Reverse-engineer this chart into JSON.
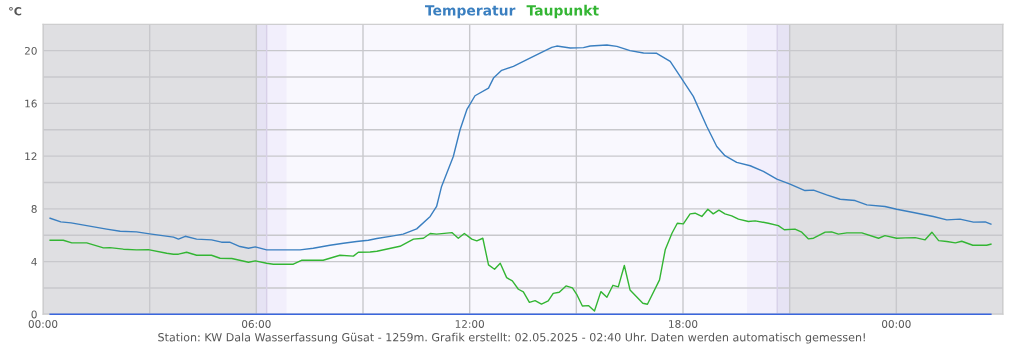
{
  "chart_data": {
    "type": "line",
    "ylabel": "°C",
    "legend": "top",
    "grid": true,
    "marker": "none",
    "line_style": "solid",
    "xlim": [
      0,
      27
    ],
    "ylim": [
      0,
      22
    ],
    "xticks": [
      {
        "value": 0,
        "label": "00:00"
      },
      {
        "value": 3,
        "label": null
      },
      {
        "value": 6,
        "label": "06:00"
      },
      {
        "value": 9,
        "label": null
      },
      {
        "value": 12,
        "label": "12:00"
      },
      {
        "value": 15,
        "label": null
      },
      {
        "value": 18,
        "label": "18:00"
      },
      {
        "value": 21,
        "label": null
      },
      {
        "value": 24,
        "label": "00:00"
      },
      {
        "value": 27,
        "label": null
      }
    ],
    "yticks": [
      0,
      {
        "value": 2,
        "label": null
      },
      4,
      {
        "value": 6,
        "label": null
      },
      8,
      {
        "value": 10,
        "label": null
      },
      12,
      {
        "value": 14,
        "label": null
      },
      16,
      {
        "value": 18,
        "label": null
      },
      20,
      {
        "value": 22,
        "label": null
      }
    ],
    "bands": [
      {
        "axis": "x",
        "from": 0,
        "to": 6.0,
        "color": "#dfdfe2"
      },
      {
        "axis": "x",
        "from": 6.0,
        "to": 6.29,
        "color": "#e6e3f4"
      },
      {
        "axis": "x",
        "from": 6.29,
        "to": 6.85,
        "color": "#f2effc"
      },
      {
        "axis": "x",
        "from": 19.8,
        "to": 20.65,
        "color": "#f2effc"
      },
      {
        "axis": "x",
        "from": 20.65,
        "to": 21.0,
        "color": "#e6e3f4"
      },
      {
        "axis": "x",
        "from": 21.0,
        "to": 27,
        "color": "#dfdfe2"
      }
    ],
    "ref_lines": [
      {
        "axis": "x",
        "value": 6.29,
        "color": "#d8d0e8"
      },
      {
        "axis": "x",
        "value": 20.65,
        "color": "#d8d0e8"
      }
    ],
    "series": [
      {
        "name": "Temperatur",
        "color": "#3a7fc0",
        "x": [
          0.2,
          0.5,
          0.79,
          1.79,
          2.17,
          2.63,
          3.0,
          3.67,
          3.81,
          4.0,
          4.32,
          4.74,
          5.02,
          5.25,
          5.54,
          5.78,
          5.97,
          6.29,
          7.23,
          7.6,
          8.07,
          8.45,
          8.82,
          9.15,
          9.39,
          9.85,
          10.13,
          10.51,
          10.89,
          11.07,
          11.21,
          11.54,
          11.73,
          11.92,
          12.15,
          12.53,
          12.67,
          12.9,
          13.23,
          13.61,
          13.98,
          14.31,
          14.45,
          14.83,
          15.2,
          15.39,
          15.86,
          16.14,
          16.51,
          16.89,
          17.26,
          17.64,
          17.92,
          18.29,
          18.67,
          18.95,
          19.18,
          19.51,
          19.89,
          20.26,
          20.64,
          21.01,
          21.43,
          21.67,
          22.04,
          22.42,
          22.84,
          23.17,
          23.68,
          24.01,
          24.48,
          25.04,
          25.42,
          25.79,
          26.17,
          26.5,
          26.66
        ],
        "values": [
          7.29,
          7.01,
          6.94,
          6.46,
          6.3,
          6.25,
          6.1,
          5.85,
          5.7,
          5.92,
          5.7,
          5.65,
          5.47,
          5.47,
          5.14,
          5.01,
          5.11,
          4.89,
          4.89,
          5.01,
          5.24,
          5.39,
          5.52,
          5.62,
          5.75,
          5.95,
          6.08,
          6.48,
          7.42,
          8.18,
          9.7,
          11.97,
          14.0,
          15.52,
          16.58,
          17.16,
          17.92,
          18.51,
          18.81,
          19.32,
          19.82,
          20.25,
          20.35,
          20.2,
          20.23,
          20.35,
          20.43,
          20.33,
          20.0,
          19.82,
          19.8,
          19.19,
          18.05,
          16.53,
          14.25,
          12.73,
          12.03,
          11.52,
          11.27,
          10.84,
          10.25,
          9.87,
          9.39,
          9.42,
          9.06,
          8.73,
          8.63,
          8.3,
          8.18,
          7.97,
          7.72,
          7.42,
          7.16,
          7.22,
          6.99,
          7.01,
          6.84
        ]
      },
      {
        "name": "Taupunkt",
        "color": "#33b533",
        "x": [
          0.2,
          0.57,
          0.81,
          1.23,
          1.7,
          1.88,
          2.26,
          2.63,
          2.96,
          3.48,
          3.67,
          3.81,
          4.04,
          4.32,
          4.74,
          4.98,
          5.31,
          5.78,
          5.97,
          6.29,
          6.48,
          7.04,
          7.27,
          7.88,
          8.35,
          8.73,
          8.87,
          9.2,
          9.39,
          10.04,
          10.42,
          10.7,
          10.89,
          11.07,
          11.5,
          11.68,
          11.85,
          12.06,
          12.2,
          12.37,
          12.53,
          12.7,
          12.86,
          13.04,
          13.2,
          13.37,
          13.51,
          13.68,
          13.84,
          14.02,
          14.21,
          14.35,
          14.52,
          14.71,
          14.89,
          15.01,
          15.17,
          15.34,
          15.51,
          15.69,
          15.86,
          16.03,
          16.18,
          16.35,
          16.51,
          16.87,
          17.0,
          17.34,
          17.5,
          17.69,
          17.84,
          18.01,
          18.2,
          18.34,
          18.53,
          18.7,
          18.85,
          19.01,
          19.18,
          19.37,
          19.56,
          19.84,
          20.03,
          20.4,
          20.68,
          20.85,
          21.15,
          21.34,
          21.53,
          21.67,
          22.0,
          22.18,
          22.37,
          22.61,
          23.03,
          23.5,
          23.68,
          24.01,
          24.25,
          24.53,
          24.81,
          25.0,
          25.19,
          25.42,
          25.66,
          25.84,
          26.15,
          26.54,
          26.66
        ],
        "values": [
          5.62,
          5.62,
          5.42,
          5.42,
          5.04,
          5.06,
          4.94,
          4.89,
          4.91,
          4.63,
          4.56,
          4.56,
          4.71,
          4.48,
          4.48,
          4.25,
          4.23,
          3.95,
          4.05,
          3.87,
          3.8,
          3.8,
          4.1,
          4.1,
          4.48,
          4.41,
          4.71,
          4.73,
          4.78,
          5.16,
          5.7,
          5.77,
          6.13,
          6.08,
          6.2,
          5.77,
          6.13,
          5.7,
          5.57,
          5.77,
          3.75,
          3.42,
          3.87,
          2.78,
          2.53,
          1.9,
          1.7,
          0.91,
          1.04,
          0.78,
          1.01,
          1.59,
          1.67,
          2.15,
          2.0,
          1.52,
          0.63,
          0.66,
          0.25,
          1.72,
          1.29,
          2.2,
          2.08,
          3.7,
          1.85,
          0.84,
          0.76,
          2.61,
          4.89,
          6.15,
          6.91,
          6.86,
          7.62,
          7.67,
          7.42,
          7.97,
          7.62,
          7.9,
          7.62,
          7.47,
          7.22,
          7.04,
          7.09,
          6.91,
          6.73,
          6.41,
          6.46,
          6.23,
          5.72,
          5.77,
          6.23,
          6.25,
          6.08,
          6.18,
          6.18,
          5.77,
          5.97,
          5.77,
          5.8,
          5.82,
          5.65,
          6.23,
          5.59,
          5.52,
          5.42,
          5.54,
          5.24,
          5.24,
          5.32
        ]
      },
      {
        "color": "#3a66dd",
        "x": [
          0.2,
          26.66
        ],
        "values": [
          0,
          0
        ]
      }
    ],
    "annotations": [
      "Station: KW Dala Wasserfassung Güsat - 1259m. Grafik erstellt: 02.05.2025 - 02:40 Uhr. Daten werden automatisch gemessen!"
    ]
  }
}
